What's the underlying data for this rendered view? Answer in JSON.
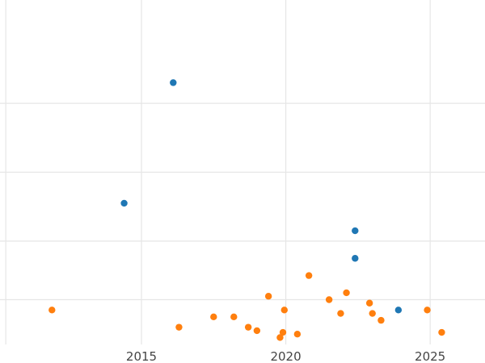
{
  "chart_data": {
    "type": "scatter",
    "title": "",
    "xlabel": "",
    "ylabel": "",
    "xlim": [
      2010.1,
      2026.9
    ],
    "ylim": [
      0,
      1
    ],
    "grid": true,
    "legend": "none",
    "x_ticks": [
      2015,
      2020,
      2025
    ],
    "x_tick_labels": [
      "2015",
      "2020",
      "2025"
    ],
    "y_grid_values": [
      0.13,
      0.3,
      0.5,
      0.7
    ],
    "series": [
      {
        "color": "#1f77b4",
        "points": [
          {
            "x": 2014.4,
            "y": 0.41
          },
          {
            "x": 2016.1,
            "y": 0.76
          },
          {
            "x": 2022.4,
            "y": 0.33
          },
          {
            "x": 2022.4,
            "y": 0.25
          },
          {
            "x": 2023.9,
            "y": 0.1
          }
        ]
      },
      {
        "color": "#ff7f0e",
        "points": [
          {
            "x": 2011.9,
            "y": 0.1
          },
          {
            "x": 2016.3,
            "y": 0.05
          },
          {
            "x": 2017.5,
            "y": 0.08
          },
          {
            "x": 2018.2,
            "y": 0.08
          },
          {
            "x": 2018.7,
            "y": 0.05
          },
          {
            "x": 2019.0,
            "y": 0.04
          },
          {
            "x": 2019.4,
            "y": 0.14
          },
          {
            "x": 2019.8,
            "y": 0.02
          },
          {
            "x": 2019.9,
            "y": 0.035
          },
          {
            "x": 2019.95,
            "y": 0.1
          },
          {
            "x": 2020.4,
            "y": 0.03
          },
          {
            "x": 2020.8,
            "y": 0.2
          },
          {
            "x": 2021.5,
            "y": 0.13
          },
          {
            "x": 2021.9,
            "y": 0.09
          },
          {
            "x": 2022.1,
            "y": 0.15
          },
          {
            "x": 2022.9,
            "y": 0.12
          },
          {
            "x": 2023.0,
            "y": 0.09
          },
          {
            "x": 2023.3,
            "y": 0.07
          },
          {
            "x": 2024.9,
            "y": 0.1
          },
          {
            "x": 2025.4,
            "y": 0.035
          }
        ]
      }
    ]
  }
}
